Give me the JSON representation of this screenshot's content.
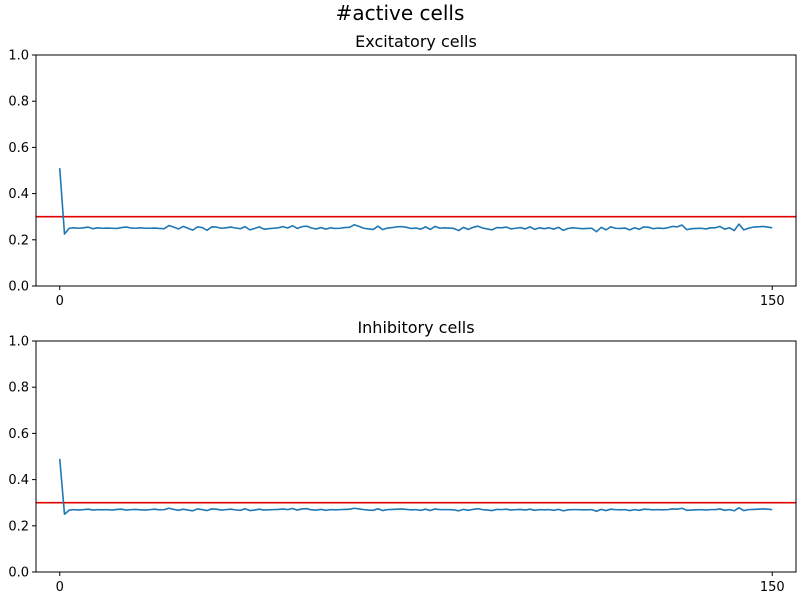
{
  "figure_title": "#active cells",
  "chart_data": [
    {
      "type": "line",
      "title": "Excitatory cells",
      "xlabel": "",
      "ylabel": "",
      "xlim": [
        -5,
        155
      ],
      "ylim": [
        0,
        1
      ],
      "xticks": [
        0,
        150
      ],
      "yticks": [
        0.0,
        0.2,
        0.4,
        0.6,
        0.8,
        1.0
      ],
      "ytick_labels": [
        "0.0",
        "0.2",
        "0.4",
        "0.6",
        "0.8",
        "1.0"
      ],
      "reference_line": {
        "y": 0.3,
        "color": "#e00000"
      },
      "series": [
        {
          "color": "#1f77b4",
          "x": [
            0,
            1,
            2,
            3,
            4,
            5,
            6,
            7,
            8,
            9,
            10,
            11,
            12,
            13,
            14,
            15,
            16,
            17,
            18,
            19,
            20,
            21,
            22,
            23,
            24,
            25,
            26,
            27,
            28,
            29,
            30,
            31,
            32,
            33,
            34,
            35,
            36,
            37,
            38,
            39,
            40,
            41,
            42,
            43,
            44,
            45,
            46,
            47,
            48,
            49,
            50,
            51,
            52,
            53,
            54,
            55,
            56,
            57,
            58,
            59,
            60,
            61,
            62,
            63,
            64,
            65,
            66,
            67,
            68,
            69,
            70,
            71,
            72,
            73,
            74,
            75,
            76,
            77,
            78,
            79,
            80,
            81,
            82,
            83,
            84,
            85,
            86,
            87,
            88,
            89,
            90,
            91,
            92,
            93,
            94,
            95,
            96,
            97,
            98,
            99,
            100,
            101,
            102,
            103,
            104,
            105,
            106,
            107,
            108,
            109,
            110,
            111,
            112,
            113,
            114,
            115,
            116,
            117,
            118,
            119,
            120,
            121,
            122,
            123,
            124,
            125,
            126,
            127,
            128,
            129,
            130,
            131,
            132,
            133,
            134,
            135,
            136,
            137,
            138,
            139,
            140,
            141,
            142,
            143,
            144,
            145,
            146,
            147,
            148,
            149,
            150
          ],
          "y": [
            0.51,
            0.225,
            0.25,
            0.252,
            0.25,
            0.252,
            0.255,
            0.248,
            0.252,
            0.25,
            0.251,
            0.25,
            0.249,
            0.253,
            0.255,
            0.251,
            0.25,
            0.252,
            0.25,
            0.25,
            0.251,
            0.249,
            0.248,
            0.262,
            0.255,
            0.247,
            0.258,
            0.25,
            0.242,
            0.256,
            0.253,
            0.241,
            0.256,
            0.255,
            0.25,
            0.252,
            0.255,
            0.251,
            0.248,
            0.257,
            0.243,
            0.249,
            0.256,
            0.246,
            0.248,
            0.25,
            0.252,
            0.257,
            0.251,
            0.261,
            0.249,
            0.257,
            0.259,
            0.251,
            0.247,
            0.253,
            0.246,
            0.252,
            0.249,
            0.25,
            0.253,
            0.254,
            0.265,
            0.258,
            0.25,
            0.247,
            0.245,
            0.259,
            0.244,
            0.251,
            0.253,
            0.256,
            0.257,
            0.254,
            0.249,
            0.251,
            0.246,
            0.256,
            0.245,
            0.258,
            0.25,
            0.252,
            0.251,
            0.249,
            0.24,
            0.254,
            0.245,
            0.254,
            0.259,
            0.251,
            0.247,
            0.243,
            0.253,
            0.252,
            0.255,
            0.247,
            0.25,
            0.253,
            0.247,
            0.256,
            0.245,
            0.252,
            0.248,
            0.252,
            0.246,
            0.254,
            0.241,
            0.249,
            0.252,
            0.25,
            0.248,
            0.249,
            0.25,
            0.235,
            0.254,
            0.243,
            0.256,
            0.25,
            0.249,
            0.251,
            0.243,
            0.252,
            0.246,
            0.256,
            0.254,
            0.248,
            0.251,
            0.249,
            0.252,
            0.258,
            0.256,
            0.264,
            0.244,
            0.248,
            0.249,
            0.25,
            0.247,
            0.252,
            0.252,
            0.258,
            0.246,
            0.252,
            0.24,
            0.268,
            0.243,
            0.25,
            0.255,
            0.256,
            0.258,
            0.255,
            0.252
          ]
        }
      ]
    },
    {
      "type": "line",
      "title": "Inhibitory cells",
      "xlabel": "",
      "ylabel": "",
      "xlim": [
        -5,
        155
      ],
      "ylim": [
        0,
        1
      ],
      "xticks": [
        0,
        150
      ],
      "yticks": [
        0.0,
        0.2,
        0.4,
        0.6,
        0.8,
        1.0
      ],
      "ytick_labels": [
        "0.0",
        "0.2",
        "0.4",
        "0.6",
        "0.8",
        "1.0"
      ],
      "reference_line": {
        "y": 0.3,
        "color": "#e00000"
      },
      "series": [
        {
          "color": "#1f77b4",
          "x": [
            0,
            1,
            2,
            3,
            4,
            5,
            6,
            7,
            8,
            9,
            10,
            11,
            12,
            13,
            14,
            15,
            16,
            17,
            18,
            19,
            20,
            21,
            22,
            23,
            24,
            25,
            26,
            27,
            28,
            29,
            30,
            31,
            32,
            33,
            34,
            35,
            36,
            37,
            38,
            39,
            40,
            41,
            42,
            43,
            44,
            45,
            46,
            47,
            48,
            49,
            50,
            51,
            52,
            53,
            54,
            55,
            56,
            57,
            58,
            59,
            60,
            61,
            62,
            63,
            64,
            65,
            66,
            67,
            68,
            69,
            70,
            71,
            72,
            73,
            74,
            75,
            76,
            77,
            78,
            79,
            80,
            81,
            82,
            83,
            84,
            85,
            86,
            87,
            88,
            89,
            90,
            91,
            92,
            93,
            94,
            95,
            96,
            97,
            98,
            99,
            100,
            101,
            102,
            103,
            104,
            105,
            106,
            107,
            108,
            109,
            110,
            111,
            112,
            113,
            114,
            115,
            116,
            117,
            118,
            119,
            120,
            121,
            122,
            123,
            124,
            125,
            126,
            127,
            128,
            129,
            130,
            131,
            132,
            133,
            134,
            135,
            136,
            137,
            138,
            139,
            140,
            141,
            142,
            143,
            144,
            145,
            146,
            147,
            148,
            149,
            150
          ],
          "y": [
            0.49,
            0.25,
            0.268,
            0.27,
            0.268,
            0.27,
            0.272,
            0.268,
            0.27,
            0.269,
            0.27,
            0.268,
            0.271,
            0.272,
            0.268,
            0.27,
            0.271,
            0.269,
            0.268,
            0.27,
            0.272,
            0.269,
            0.27,
            0.276,
            0.271,
            0.267,
            0.272,
            0.268,
            0.265,
            0.273,
            0.27,
            0.266,
            0.273,
            0.272,
            0.268,
            0.27,
            0.272,
            0.269,
            0.267,
            0.274,
            0.266,
            0.268,
            0.272,
            0.268,
            0.269,
            0.27,
            0.271,
            0.273,
            0.27,
            0.275,
            0.268,
            0.273,
            0.274,
            0.269,
            0.268,
            0.271,
            0.267,
            0.27,
            0.269,
            0.27,
            0.271,
            0.272,
            0.276,
            0.273,
            0.27,
            0.268,
            0.267,
            0.274,
            0.266,
            0.27,
            0.271,
            0.272,
            0.273,
            0.271,
            0.269,
            0.27,
            0.267,
            0.272,
            0.266,
            0.273,
            0.27,
            0.27,
            0.27,
            0.269,
            0.265,
            0.271,
            0.267,
            0.271,
            0.274,
            0.27,
            0.268,
            0.266,
            0.271,
            0.27,
            0.272,
            0.268,
            0.27,
            0.271,
            0.268,
            0.272,
            0.267,
            0.27,
            0.269,
            0.27,
            0.267,
            0.271,
            0.265,
            0.269,
            0.27,
            0.27,
            0.269,
            0.269,
            0.27,
            0.263,
            0.271,
            0.266,
            0.272,
            0.27,
            0.269,
            0.27,
            0.266,
            0.27,
            0.267,
            0.272,
            0.271,
            0.269,
            0.27,
            0.269,
            0.27,
            0.273,
            0.272,
            0.276,
            0.267,
            0.268,
            0.269,
            0.27,
            0.268,
            0.27,
            0.27,
            0.273,
            0.267,
            0.27,
            0.265,
            0.278,
            0.266,
            0.27,
            0.271,
            0.272,
            0.273,
            0.272,
            0.27
          ]
        }
      ]
    }
  ]
}
